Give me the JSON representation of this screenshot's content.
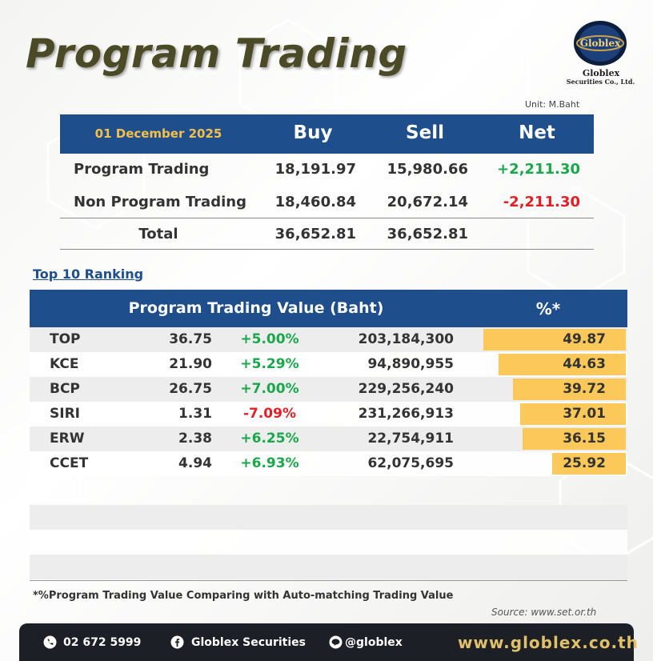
{
  "header": {
    "title": "Program Trading",
    "logo_text": "Globlex",
    "company_name": "Globlex",
    "company_sub": "Securities Co., Ltd."
  },
  "unit": "Unit: M.Baht",
  "summary": {
    "date": "01 December 2025",
    "columns": [
      "Buy",
      "Sell",
      "Net"
    ],
    "rows": [
      {
        "label": "Program Trading",
        "buy": "18,191.97",
        "sell": "15,980.66",
        "net": "+2,211.30"
      },
      {
        "label": "Non Program Trading",
        "buy": "18,460.84",
        "sell": "20,672.14",
        "net": "-2,211.30"
      },
      {
        "label": "Total",
        "buy": "36,652.81",
        "sell": "36,652.81",
        "net": ""
      }
    ]
  },
  "ranking": {
    "title": "Top 10 Ranking",
    "header_main": "Program Trading Value (Baht)",
    "header_pct": "%*",
    "rows": [
      {
        "symbol": "TOP",
        "price": "36.75",
        "change": "+5.00%",
        "value": "203,184,300",
        "pct": "49.87",
        "pct_num": 49.87
      },
      {
        "symbol": "KCE",
        "price": "21.90",
        "change": "+5.29%",
        "value": "94,890,955",
        "pct": "44.63",
        "pct_num": 44.63
      },
      {
        "symbol": "BCP",
        "price": "26.75",
        "change": "+7.00%",
        "value": "229,256,240",
        "pct": "39.72",
        "pct_num": 39.72
      },
      {
        "symbol": "SIRI",
        "price": "1.31",
        "change": "-7.09%",
        "value": "231,266,913",
        "pct": "37.01",
        "pct_num": 37.01
      },
      {
        "symbol": "ERW",
        "price": "2.38",
        "change": "+6.25%",
        "value": "22,754,911",
        "pct": "36.15",
        "pct_num": 36.15
      },
      {
        "symbol": "CCET",
        "price": "4.94",
        "change": "+6.93%",
        "value": "62,075,695",
        "pct": "25.92",
        "pct_num": 25.92
      }
    ],
    "footnote": "*%Program Trading Value Comparing with Auto-matching Trading Value",
    "source": "Source: www.set.or.th"
  },
  "footer": {
    "phone": "02 672 5999",
    "facebook": "Globlex Securities",
    "line": "@globlex",
    "website": "www.globlex.co.th"
  },
  "colors": {
    "header_blue": "#1f4e8c",
    "date_gold": "#f5c04a",
    "positive": "#18a84a",
    "negative": "#e31e24",
    "bar": "#fcc85a",
    "footer_bg": "#1c1f26",
    "website_gold": "#e0c068"
  }
}
